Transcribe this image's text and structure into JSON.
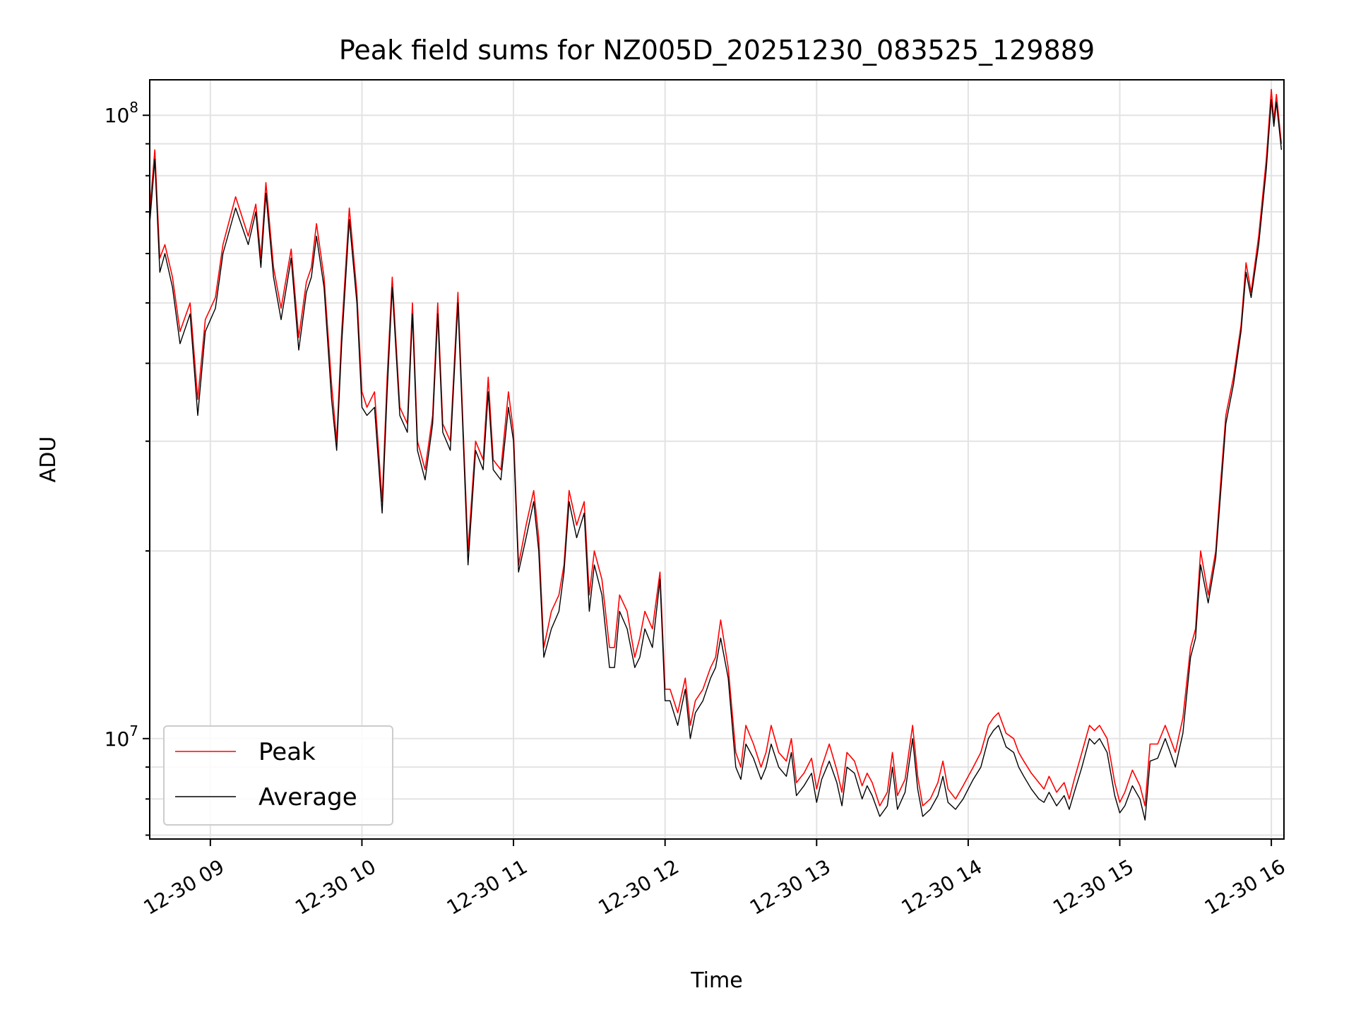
{
  "chart_data": {
    "type": "line",
    "title": "Peak field sums for NZ005D_20251230_083525_129889",
    "xlabel": "Time",
    "ylabel": "ADU",
    "y_scale": "log",
    "ylim": [
      6900000,
      114000000
    ],
    "xlim": [
      "12-30 08:36",
      "12-30 16:05"
    ],
    "grid": true,
    "legend_position": "lower-left",
    "x_ticks": [
      "12-30 09",
      "12-30 10",
      "12-30 11",
      "12-30 12",
      "12-30 13",
      "12-30 14",
      "12-30 15",
      "12-30 16"
    ],
    "y_ticks": [
      {
        "label_base": "10",
        "label_exp": "7",
        "value": 10000000
      },
      {
        "label_base": "10",
        "label_exp": "8",
        "value": 100000000
      }
    ],
    "series": [
      {
        "name": "Peak",
        "color": "#ff0000"
      },
      {
        "name": "Average",
        "color": "#000000"
      }
    ],
    "x": [
      "08:36",
      "08:38",
      "08:40",
      "08:42",
      "08:45",
      "08:48",
      "08:52",
      "08:55",
      "08:58",
      "09:02",
      "09:05",
      "09:10",
      "09:15",
      "09:18",
      "09:20",
      "09:22",
      "09:25",
      "09:28",
      "09:32",
      "09:35",
      "09:38",
      "09:40",
      "09:42",
      "09:45",
      "09:48",
      "09:50",
      "09:52",
      "09:55",
      "09:58",
      "10:00",
      "10:02",
      "10:05",
      "10:08",
      "10:10",
      "10:12",
      "10:15",
      "10:18",
      "10:20",
      "10:22",
      "10:25",
      "10:28",
      "10:30",
      "10:32",
      "10:35",
      "10:38",
      "10:40",
      "10:42",
      "10:45",
      "10:48",
      "10:50",
      "10:52",
      "10:55",
      "10:58",
      "11:00",
      "11:02",
      "11:05",
      "11:08",
      "11:10",
      "11:12",
      "11:15",
      "11:18",
      "11:20",
      "11:22",
      "11:25",
      "11:28",
      "11:30",
      "11:32",
      "11:35",
      "11:38",
      "11:40",
      "11:42",
      "11:45",
      "11:48",
      "11:50",
      "11:52",
      "11:55",
      "11:58",
      "12:00",
      "12:02",
      "12:05",
      "12:08",
      "12:10",
      "12:12",
      "12:15",
      "12:18",
      "12:20",
      "12:22",
      "12:25",
      "12:28",
      "12:30",
      "12:32",
      "12:35",
      "12:38",
      "12:40",
      "12:42",
      "12:45",
      "12:48",
      "12:50",
      "12:52",
      "12:55",
      "12:58",
      "13:00",
      "13:02",
      "13:05",
      "13:08",
      "13:10",
      "13:12",
      "13:15",
      "13:18",
      "13:20",
      "13:22",
      "13:25",
      "13:28",
      "13:30",
      "13:32",
      "13:35",
      "13:38",
      "13:40",
      "13:42",
      "13:45",
      "13:48",
      "13:50",
      "13:52",
      "13:55",
      "13:58",
      "14:00",
      "14:02",
      "14:05",
      "14:08",
      "14:10",
      "14:12",
      "14:15",
      "14:18",
      "14:20",
      "14:22",
      "14:25",
      "14:28",
      "14:30",
      "14:32",
      "14:35",
      "14:38",
      "14:40",
      "14:42",
      "14:45",
      "14:48",
      "14:50",
      "14:52",
      "14:55",
      "14:58",
      "15:00",
      "15:02",
      "15:05",
      "15:08",
      "15:10",
      "15:12",
      "15:15",
      "15:18",
      "15:20",
      "15:22",
      "15:25",
      "15:28",
      "15:30",
      "15:32",
      "15:35",
      "15:38",
      "15:40",
      "15:42",
      "15:45",
      "15:48",
      "15:50",
      "15:52",
      "15:55",
      "15:58",
      "16:00",
      "16:01",
      "16:02",
      "16:04",
      "16:05"
    ],
    "peak_values": [
      70000000,
      88000000,
      59000000,
      62000000,
      55000000,
      45000000,
      50000000,
      35000000,
      47000000,
      51000000,
      62000000,
      74000000,
      64000000,
      72000000,
      59000000,
      78000000,
      57000000,
      49000000,
      61000000,
      44000000,
      54000000,
      57000000,
      67000000,
      55000000,
      37000000,
      30000000,
      45000000,
      71000000,
      52000000,
      36000000,
      34000000,
      36000000,
      24000000,
      38000000,
      55000000,
      34000000,
      32000000,
      50000000,
      30000000,
      27000000,
      33000000,
      50000000,
      32000000,
      30000000,
      52000000,
      32000000,
      20000000,
      30000000,
      28000000,
      38000000,
      28000000,
      27000000,
      36000000,
      31000000,
      19000000,
      22000000,
      25000000,
      21000000,
      14000000,
      16000000,
      17000000,
      19000000,
      25000000,
      22000000,
      24000000,
      17000000,
      20000000,
      18000000,
      14000000,
      14000000,
      17000000,
      16000000,
      13500000,
      14500000,
      16000000,
      15000000,
      18500000,
      12000000,
      12000000,
      11000000,
      12500000,
      10500000,
      11500000,
      12000000,
      13000000,
      13500000,
      15500000,
      13000000,
      9500000,
      9000000,
      10500000,
      9800000,
      9000000,
      9500000,
      10500000,
      9500000,
      9200000,
      10000000,
      8500000,
      8800000,
      9300000,
      8300000,
      9000000,
      9800000,
      8900000,
      8200000,
      9500000,
      9200000,
      8400000,
      8800000,
      8500000,
      7800000,
      8200000,
      9500000,
      8100000,
      8600000,
      10500000,
      8700000,
      7800000,
      8000000,
      8500000,
      9200000,
      8300000,
      8000000,
      8400000,
      8700000,
      9000000,
      9500000,
      10500000,
      10800000,
      11000000,
      10200000,
      10000000,
      9500000,
      9200000,
      8800000,
      8500000,
      8300000,
      8700000,
      8200000,
      8500000,
      8000000,
      8600000,
      9500000,
      10500000,
      10300000,
      10500000,
      10000000,
      8500000,
      7900000,
      8200000,
      8900000,
      8400000,
      7800000,
      9800000,
      9800000,
      10500000,
      10000000,
      9500000,
      10800000,
      14000000,
      15000000,
      20000000,
      17000000,
      20000000,
      26000000,
      33000000,
      38000000,
      46000000,
      58000000,
      52000000,
      64000000,
      85000000,
      110000000,
      98000000,
      108000000,
      90000000
    ],
    "avg_values": [
      67000000,
      85000000,
      56000000,
      60000000,
      53000000,
      43000000,
      48000000,
      33000000,
      45000000,
      49000000,
      60000000,
      71000000,
      62000000,
      70000000,
      57000000,
      75000000,
      55000000,
      47000000,
      59000000,
      42000000,
      52000000,
      55000000,
      64000000,
      53000000,
      35000000,
      29000000,
      43000000,
      68000000,
      50000000,
      34000000,
      33000000,
      34000000,
      23000000,
      36000000,
      53000000,
      33000000,
      31000000,
      48000000,
      29000000,
      26000000,
      32000000,
      48000000,
      31000000,
      29000000,
      50000000,
      31000000,
      19000000,
      29000000,
      27000000,
      36000000,
      27000000,
      26000000,
      34000000,
      30000000,
      18500000,
      21000000,
      24000000,
      20000000,
      13500000,
      15000000,
      16000000,
      18500000,
      24000000,
      21000000,
      23000000,
      16000000,
      19000000,
      17000000,
      13000000,
      13000000,
      16000000,
      15000000,
      13000000,
      13500000,
      15000000,
      14000000,
      18000000,
      11500000,
      11500000,
      10500000,
      12000000,
      10000000,
      11000000,
      11500000,
      12500000,
      13000000,
      14500000,
      12500000,
      9000000,
      8600000,
      9800000,
      9300000,
      8600000,
      9000000,
      9800000,
      9000000,
      8700000,
      9500000,
      8100000,
      8400000,
      8800000,
      7900000,
      8600000,
      9200000,
      8500000,
      7800000,
      9000000,
      8800000,
      8000000,
      8400000,
      8100000,
      7500000,
      7800000,
      9000000,
      7700000,
      8200000,
      10000000,
      8300000,
      7500000,
      7700000,
      8100000,
      8700000,
      7900000,
      7700000,
      8000000,
      8300000,
      8600000,
      9000000,
      10000000,
      10300000,
      10500000,
      9700000,
      9500000,
      9000000,
      8700000,
      8300000,
      8000000,
      7900000,
      8200000,
      7800000,
      8100000,
      7700000,
      8200000,
      9000000,
      10000000,
      9800000,
      10000000,
      9500000,
      8100000,
      7600000,
      7800000,
      8400000,
      8000000,
      7400000,
      9200000,
      9300000,
      10000000,
      9500000,
      9000000,
      10200000,
      13500000,
      14500000,
      19000000,
      16500000,
      19500000,
      25000000,
      32000000,
      37000000,
      45000000,
      56000000,
      51000000,
      62000000,
      82000000,
      106000000,
      96000000,
      105000000,
      88000000
    ]
  }
}
